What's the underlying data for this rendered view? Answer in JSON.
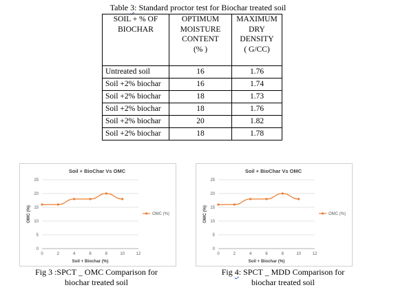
{
  "table": {
    "caption_prefix": "Table",
    "caption_num": "3",
    "caption_rest": ": Standard proctor test for Biochar treated soil",
    "headers": [
      [
        "SOIL +  % OF",
        "BIOCHAR"
      ],
      [
        "OPTIMUM",
        "MOISTURE",
        "CONTENT",
        "(% )"
      ],
      [
        "MAXIMUM",
        "DRY",
        "DENSITY",
        "( G/CC)"
      ]
    ],
    "rows": [
      [
        "Untreated soil",
        "16",
        "1.76"
      ],
      [
        "Soil +2%  biochar",
        "16",
        "1.74"
      ],
      [
        "Soil +2%  biochar",
        "18",
        "1.73"
      ],
      [
        "Soil +2%  biochar",
        "18",
        "1.76"
      ],
      [
        "Soil +2%  biochar",
        "20",
        "1.82"
      ],
      [
        "Soil +2%  biochar",
        "18",
        "1.78"
      ]
    ]
  },
  "figures": {
    "fig3_caption": [
      "Fig 3 :SPCT _ OMC Comparison for",
      "biochar treated soil"
    ],
    "fig4_caption_prefix": "Fig",
    "fig4_caption_num": "4",
    "fig4_caption_rest": ": SPCT _ MDD Comparison for",
    "fig4_caption_line2": "biochar treated soil"
  },
  "chart_data": [
    {
      "type": "line",
      "title": "Soil + BioChar Vs OMC",
      "xlabel": "Soil + Biochar (%)",
      "ylabel": "OMC (%)",
      "x": [
        0,
        2,
        4,
        6,
        8,
        10
      ],
      "series": [
        {
          "name": "OMC (%)",
          "values": [
            16,
            16,
            18,
            18,
            20,
            18
          ]
        }
      ],
      "xlim": [
        0,
        12
      ],
      "ylim": [
        0,
        25
      ],
      "xticks": [
        0,
        2,
        4,
        6,
        8,
        10,
        12
      ],
      "yticks": [
        0,
        5,
        10,
        15,
        20,
        25
      ],
      "grid": true,
      "legend": "right",
      "color": "#ed7d31"
    },
    {
      "type": "line",
      "title": "Soil + BioChar Vs OMC",
      "xlabel": "Soil + Biochar (%)",
      "ylabel": "OMC (%)",
      "x": [
        0,
        2,
        4,
        6,
        8,
        10
      ],
      "series": [
        {
          "name": "OMC (%)",
          "values": [
            16,
            16,
            18,
            18,
            20,
            18
          ]
        }
      ],
      "xlim": [
        0,
        12
      ],
      "ylim": [
        0,
        25
      ],
      "xticks": [
        0,
        2,
        4,
        6,
        8,
        10,
        12
      ],
      "yticks": [
        0,
        5,
        10,
        15,
        20,
        25
      ],
      "grid": true,
      "legend": "right",
      "color": "#ed7d31"
    }
  ]
}
